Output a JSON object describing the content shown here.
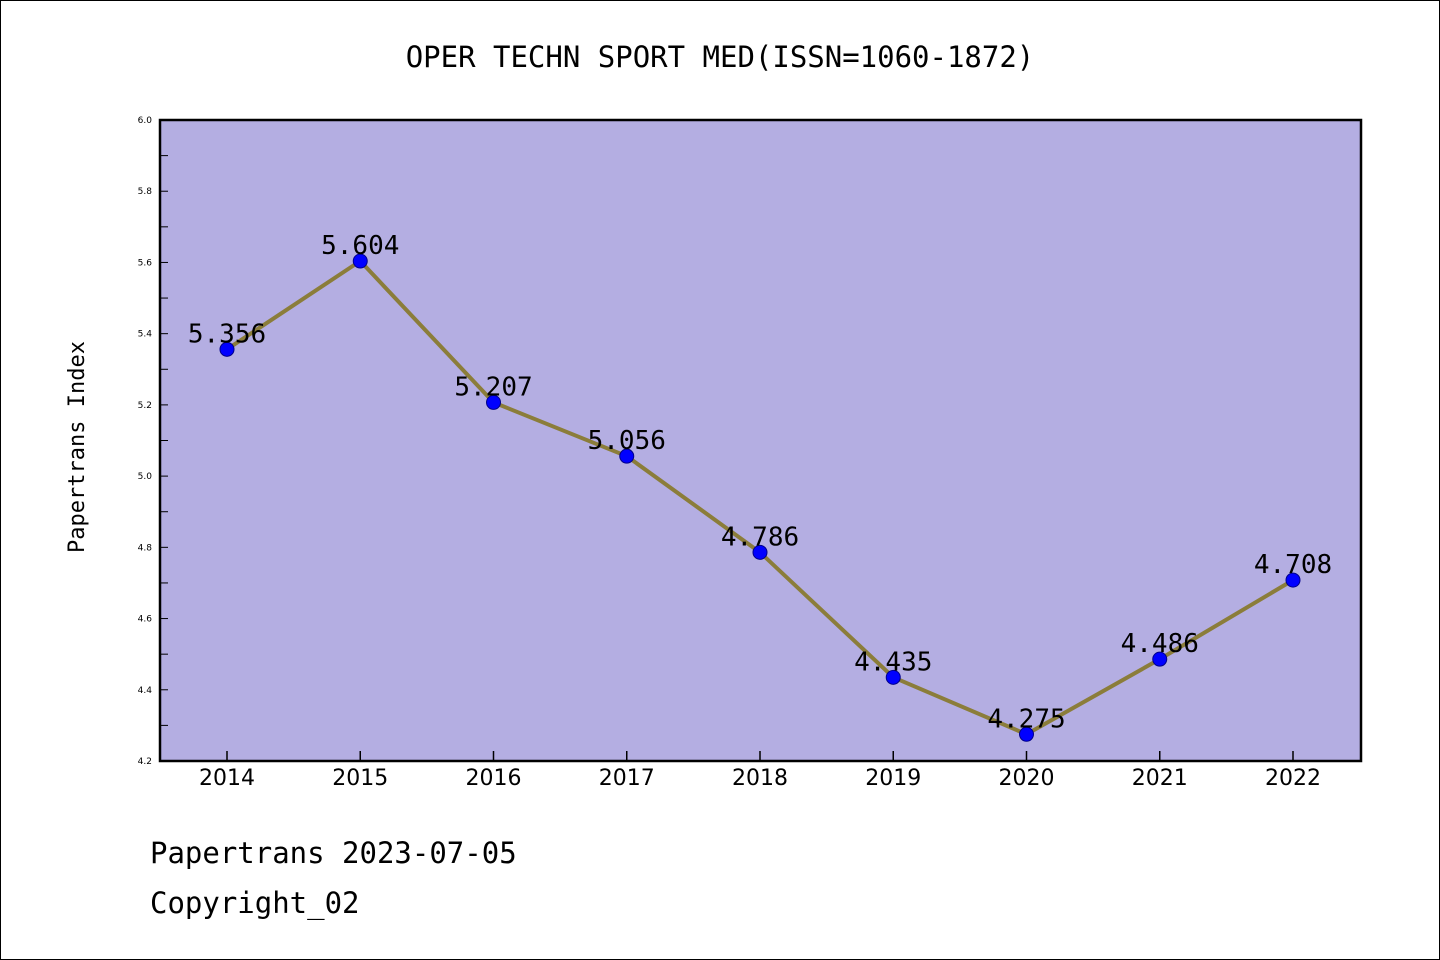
{
  "chart_data": {
    "type": "line",
    "title": "OPER TECHN SPORT MED(ISSN=1060-1872)",
    "xlabel": "",
    "ylabel": "Papertrans Index",
    "categories": [
      "2014",
      "2015",
      "2016",
      "2017",
      "2018",
      "2019",
      "2020",
      "2021",
      "2022"
    ],
    "series": [
      {
        "values": [
          5.356,
          5.604,
          5.207,
          5.056,
          4.786,
          4.435,
          4.275,
          4.486,
          4.708
        ],
        "labels": [
          "5.356",
          "5.604",
          "5.207",
          "5.056",
          "4.786",
          "4.435",
          "4.275",
          "4.486",
          "4.708"
        ]
      }
    ],
    "ylim": [
      4.2,
      6.0
    ],
    "yticks": [
      "4.2",
      "4.4",
      "4.6",
      "4.8",
      "5.0",
      "5.2",
      "5.4",
      "5.6",
      "5.8",
      "6.0"
    ],
    "grid": false,
    "colors": {
      "plot_background": "#b4aee2",
      "line": "#8b7d3a",
      "marker": "#0000ff"
    }
  },
  "footer": {
    "line1": "Papertrans 2023-07-05",
    "line2": "Copyright_02"
  }
}
